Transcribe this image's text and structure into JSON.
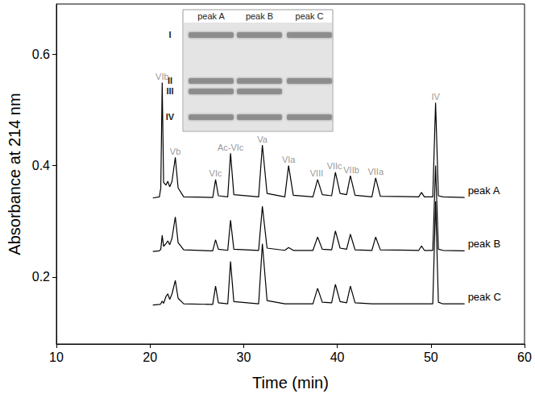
{
  "chart_data": {
    "type": "line",
    "x_label": "Time (min)",
    "y_label": "Absorbance at 214 nm",
    "xlim": [
      10,
      60
    ],
    "xticks": [
      10,
      20,
      30,
      40,
      50,
      60
    ],
    "ylim": [
      0.08,
      0.69
    ],
    "yticks": [
      0.2,
      0.4,
      0.6
    ],
    "grid": false,
    "x": [
      20.3,
      21.0,
      21.15,
      21.3,
      21.45,
      21.7,
      21.9,
      22.1,
      22.35,
      22.7,
      23.0,
      23.6,
      26.7,
      27.0,
      27.3,
      28.3,
      28.6,
      28.95,
      31.6,
      32.0,
      32.5,
      34.4,
      34.8,
      35.3,
      37.4,
      37.9,
      38.4,
      39.4,
      39.8,
      40.3,
      41.0,
      41.4,
      41.9,
      43.7,
      44.1,
      44.6,
      48.7,
      49.0,
      49.3,
      50.2,
      50.5,
      50.8,
      51.3,
      53.6
    ],
    "series": [
      {
        "name": "peak A",
        "color": "#000000",
        "line_style": "solid",
        "values": [
          0.342,
          0.344,
          0.36,
          0.549,
          0.37,
          0.365,
          0.372,
          0.362,
          0.372,
          0.415,
          0.36,
          0.344,
          0.343,
          0.375,
          0.346,
          0.344,
          0.422,
          0.348,
          0.344,
          0.437,
          0.35,
          0.344,
          0.4,
          0.347,
          0.344,
          0.375,
          0.348,
          0.346,
          0.388,
          0.35,
          0.348,
          0.382,
          0.347,
          0.344,
          0.378,
          0.345,
          0.344,
          0.352,
          0.344,
          0.344,
          0.513,
          0.346,
          0.344,
          0.343
        ]
      },
      {
        "name": "peak B",
        "color": "#000000",
        "line_style": "solid",
        "values": [
          0.246,
          0.247,
          0.25,
          0.275,
          0.255,
          0.26,
          0.265,
          0.258,
          0.27,
          0.308,
          0.262,
          0.249,
          0.247,
          0.267,
          0.25,
          0.248,
          0.302,
          0.25,
          0.248,
          0.327,
          0.252,
          0.248,
          0.253,
          0.248,
          0.248,
          0.272,
          0.25,
          0.249,
          0.283,
          0.252,
          0.25,
          0.277,
          0.249,
          0.248,
          0.272,
          0.249,
          0.248,
          0.256,
          0.248,
          0.248,
          0.4,
          0.25,
          0.248,
          0.247
        ]
      },
      {
        "name": "peak C",
        "color": "#000000",
        "line_style": "solid",
        "values": [
          0.15,
          0.151,
          0.152,
          0.157,
          0.153,
          0.165,
          0.17,
          0.16,
          0.17,
          0.194,
          0.162,
          0.152,
          0.151,
          0.184,
          0.154,
          0.152,
          0.228,
          0.156,
          0.152,
          0.26,
          0.158,
          0.152,
          0.152,
          0.152,
          0.152,
          0.18,
          0.155,
          0.154,
          0.187,
          0.156,
          0.154,
          0.184,
          0.154,
          0.152,
          0.152,
          0.152,
          0.152,
          0.152,
          0.152,
          0.152,
          0.336,
          0.155,
          0.152,
          0.152
        ]
      }
    ],
    "annotations": [
      {
        "text": "VIb",
        "x": 21.3,
        "y": 0.549
      },
      {
        "text": "Vb",
        "x": 22.7,
        "y": 0.415
      },
      {
        "text": "VIc",
        "x": 27.0,
        "y": 0.375
      },
      {
        "text": "Ac-VIc",
        "x": 28.6,
        "y": 0.422
      },
      {
        "text": "Va",
        "x": 32.0,
        "y": 0.437
      },
      {
        "text": "VIa",
        "x": 34.8,
        "y": 0.4
      },
      {
        "text": "VIII",
        "x": 37.8,
        "y": 0.375
      },
      {
        "text": "VIIc",
        "x": 39.7,
        "y": 0.388
      },
      {
        "text": "VIIb",
        "x": 41.5,
        "y": 0.382
      },
      {
        "text": "VIIa",
        "x": 44.1,
        "y": 0.378
      },
      {
        "text": "IV",
        "x": 50.5,
        "y": 0.513
      }
    ],
    "inset": {
      "band_labels": [
        "I",
        "II",
        "III",
        "IV"
      ],
      "lanes": [
        {
          "label": "peak A",
          "bands": [
            "I",
            "II",
            "III",
            "IV"
          ]
        },
        {
          "label": "peak B",
          "bands": [
            "I",
            "II",
            "III",
            "IV"
          ]
        },
        {
          "label": "peak C",
          "bands": [
            "I",
            "II",
            "IV"
          ]
        }
      ]
    }
  }
}
